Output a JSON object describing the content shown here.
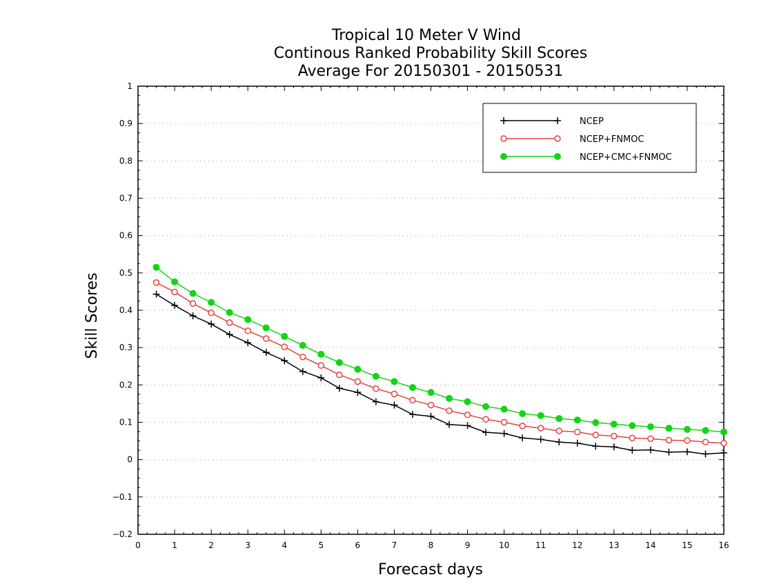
{
  "chart_data": {
    "type": "line",
    "title_lines": [
      "Tropical 10 Meter V Wind",
      "Continous Ranked Probability Skill Scores",
      "Average For 20150301 - 20150531"
    ],
    "xlabel": "Forecast days",
    "ylabel": "Skill Scores",
    "xlim": [
      0,
      16
    ],
    "ylim": [
      -0.2,
      1
    ],
    "xticks": [
      "0",
      "1",
      "2",
      "3",
      "4",
      "5",
      "6",
      "7",
      "8",
      "9",
      "10",
      "11",
      "12",
      "13",
      "14",
      "15",
      "16"
    ],
    "yticks": [
      "−0.2",
      "−0.1",
      "0",
      "0.1",
      "0.2",
      "0.3",
      "0.4",
      "0.5",
      "0.6",
      "0.7",
      "0.8",
      "0.9",
      "1"
    ],
    "ytick_values": [
      -0.2,
      -0.1,
      0,
      0.1,
      0.2,
      0.3,
      0.4,
      0.5,
      0.6,
      0.7,
      0.8,
      0.9,
      1
    ],
    "grid": true,
    "legend_position": "top-right",
    "x": [
      0.5,
      1,
      1.5,
      2,
      2.5,
      3,
      3.5,
      4,
      4.5,
      5,
      5.5,
      6,
      6.5,
      7,
      7.5,
      8,
      8.5,
      9,
      9.5,
      10,
      10.5,
      11,
      11.5,
      12,
      12.5,
      13,
      13.5,
      14,
      14.5,
      15,
      15.5,
      16
    ],
    "series": [
      {
        "name": "NCEP",
        "color": "#000000",
        "marker": "plus",
        "values": [
          0.443,
          0.413,
          0.385,
          0.363,
          0.335,
          0.313,
          0.287,
          0.265,
          0.236,
          0.219,
          0.191,
          0.18,
          0.155,
          0.146,
          0.121,
          0.116,
          0.094,
          0.091,
          0.073,
          0.07,
          0.058,
          0.054,
          0.047,
          0.044,
          0.036,
          0.034,
          0.025,
          0.026,
          0.02,
          0.021,
          0.015,
          0.018
        ]
      },
      {
        "name": "NCEP+FNMOC",
        "color": "#e84040",
        "marker": "open-circle",
        "values": [
          0.474,
          0.449,
          0.418,
          0.393,
          0.367,
          0.345,
          0.324,
          0.302,
          0.275,
          0.252,
          0.227,
          0.209,
          0.19,
          0.176,
          0.159,
          0.146,
          0.131,
          0.12,
          0.108,
          0.1,
          0.09,
          0.084,
          0.077,
          0.074,
          0.066,
          0.063,
          0.058,
          0.056,
          0.052,
          0.051,
          0.047,
          0.044
        ]
      },
      {
        "name": "NCEP+CMC+FNMOC",
        "color": "#14d414",
        "marker": "filled-circle",
        "values": [
          0.515,
          0.476,
          0.445,
          0.421,
          0.394,
          0.375,
          0.353,
          0.33,
          0.306,
          0.282,
          0.26,
          0.242,
          0.223,
          0.209,
          0.193,
          0.18,
          0.164,
          0.155,
          0.142,
          0.135,
          0.123,
          0.118,
          0.11,
          0.106,
          0.099,
          0.095,
          0.091,
          0.088,
          0.084,
          0.081,
          0.078,
          0.074
        ]
      }
    ]
  }
}
